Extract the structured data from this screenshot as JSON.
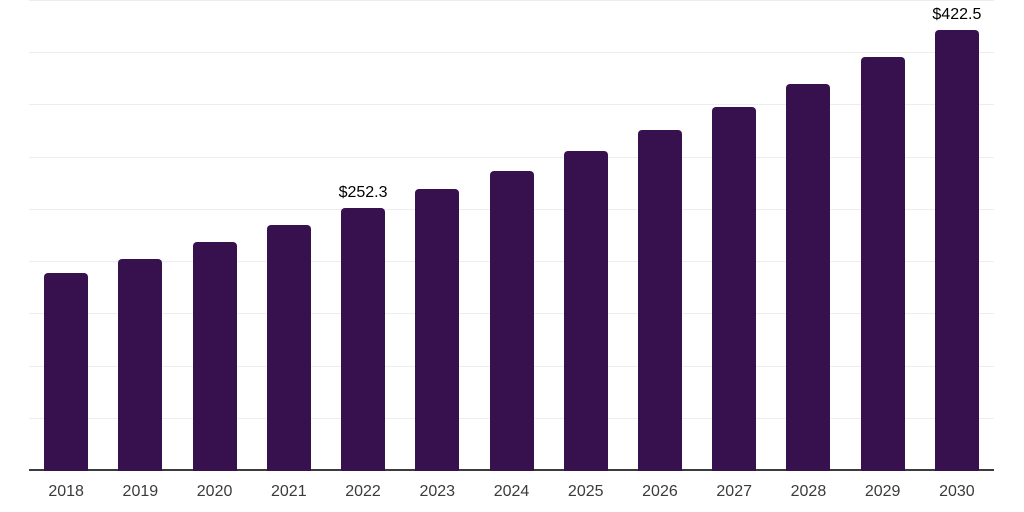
{
  "chart_data": {
    "type": "bar",
    "title": "",
    "xlabel": "",
    "ylabel": "",
    "categories": [
      "2018",
      "2019",
      "2020",
      "2021",
      "2022",
      "2023",
      "2024",
      "2025",
      "2026",
      "2027",
      "2028",
      "2029",
      "2030"
    ],
    "values": [
      190.0,
      203.2,
      219.0,
      235.5,
      252.3,
      270.0,
      287.5,
      306.8,
      326.5,
      348.2,
      371.0,
      396.0,
      422.5
    ],
    "value_prefix": "$",
    "visible_data_labels": {
      "2022": "$252.3",
      "2030": "$422.5"
    },
    "ylim": [
      0,
      450
    ],
    "gridline_step": 50,
    "grid": true,
    "y_axis_tick_labels_shown": false,
    "legend_position": "none",
    "colors": {
      "bar": "#36114E",
      "gridline": "#ededed",
      "axis_line": "#3c3c3c",
      "tick_label": "#3b3b3b",
      "data_label": "#000000",
      "background": "#ffffff"
    }
  }
}
